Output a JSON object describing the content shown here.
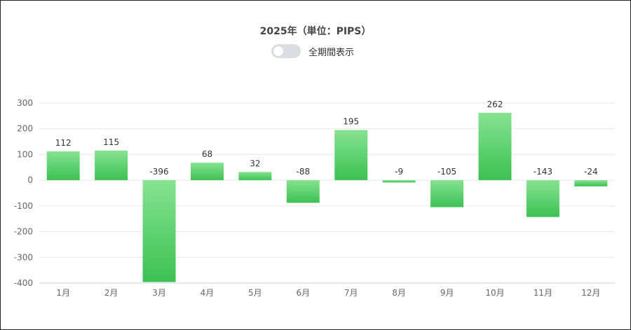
{
  "header": {
    "title": "2025年（単位：PIPS）",
    "toggle_label": "全期間表示",
    "toggle_on": false
  },
  "colors": {
    "bar_top": "#86e391",
    "bar_bottom": "#3cc152",
    "grid": "#e3e6ee",
    "axis": "#cfd3dd"
  },
  "chart_data": {
    "type": "bar",
    "title": "2025年（単位：PIPS）",
    "categories": [
      "1月",
      "2月",
      "3月",
      "4月",
      "5月",
      "6月",
      "7月",
      "8月",
      "9月",
      "10月",
      "11月",
      "12月"
    ],
    "values": [
      112,
      115,
      -396,
      68,
      32,
      -88,
      195,
      -9,
      -105,
      262,
      -143,
      -24
    ],
    "ylim": [
      -400,
      300
    ],
    "yticks": [
      300,
      200,
      100,
      0,
      -100,
      -200,
      -300,
      -400
    ],
    "grid": true,
    "legend": "none",
    "data_labels": true
  }
}
